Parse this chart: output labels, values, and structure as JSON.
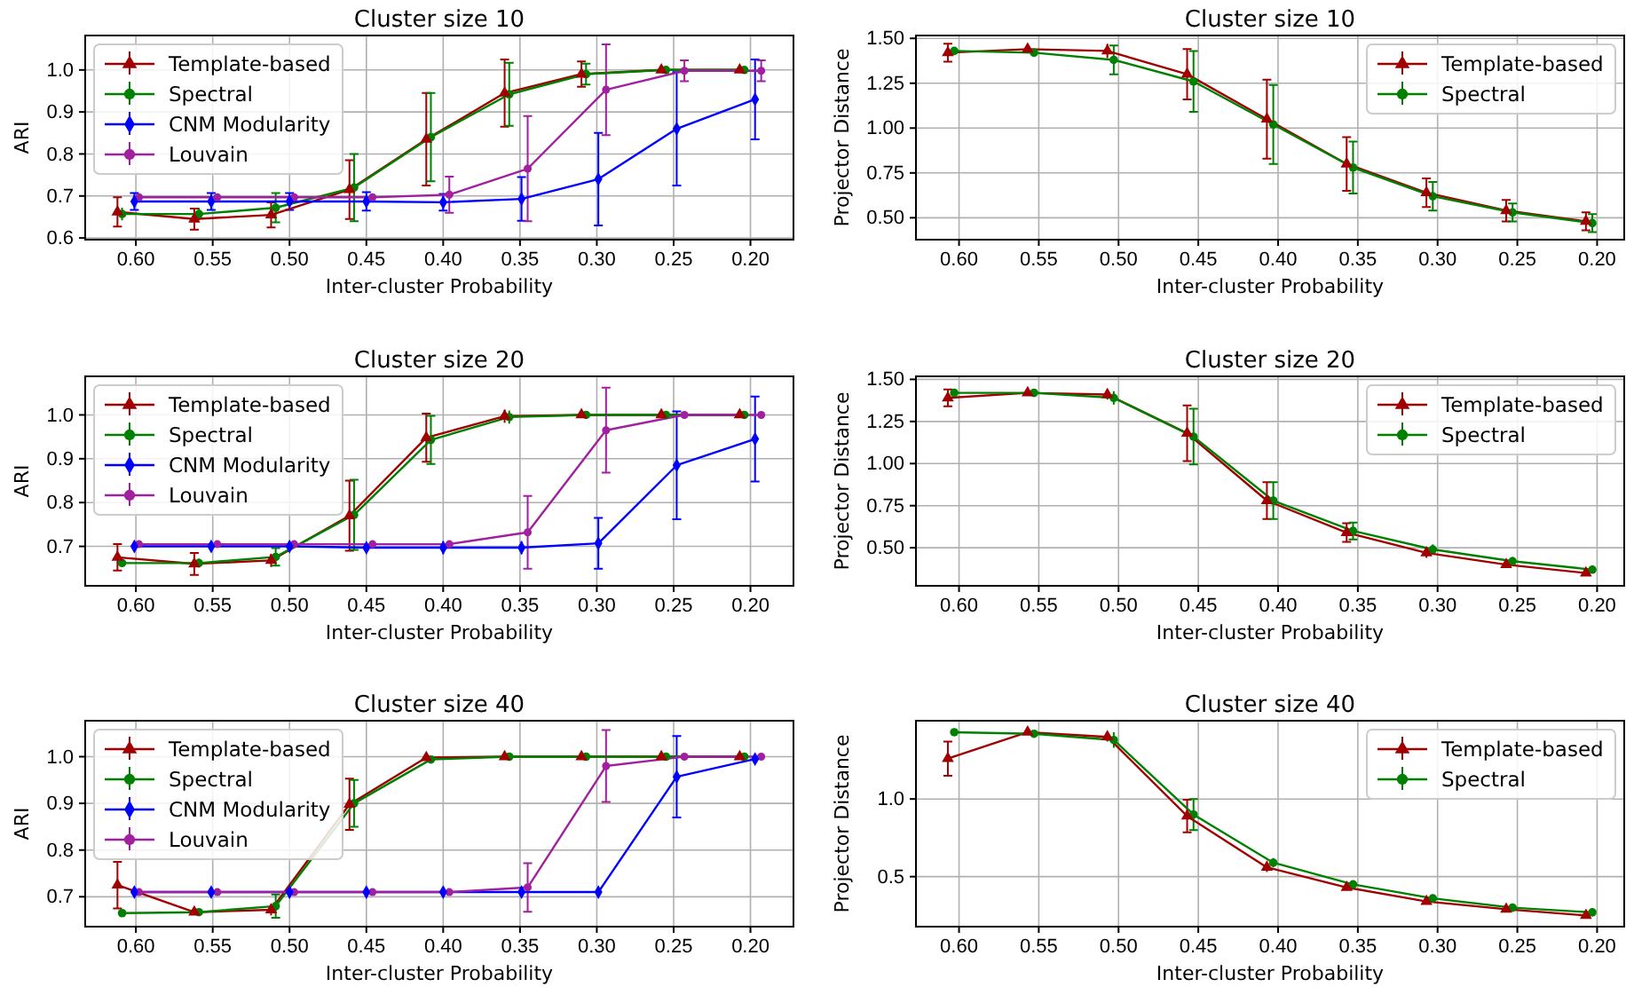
{
  "chart_data": [
    {
      "type": "line",
      "title": "Cluster size 10",
      "xlabel": "Inter-cluster Probability",
      "ylabel": "ARI",
      "xlim": [
        0.633,
        0.172
      ],
      "ylim": [
        0.596,
        1.082
      ],
      "xticks": [
        {
          "value": 0.6,
          "label": "0.60"
        },
        {
          "value": 0.55,
          "label": "0.55"
        },
        {
          "value": 0.5,
          "label": "0.50"
        },
        {
          "value": 0.45,
          "label": "0.45"
        },
        {
          "value": 0.4,
          "label": "0.40"
        },
        {
          "value": 0.35,
          "label": "0.35"
        },
        {
          "value": 0.3,
          "label": "0.30"
        },
        {
          "value": 0.25,
          "label": "0.25"
        },
        {
          "value": 0.2,
          "label": "0.20"
        }
      ],
      "yticks": [
        0.6,
        0.7,
        0.8,
        0.9,
        {
          "value": 1,
          "label": "1.0"
        }
      ],
      "grid": true,
      "legend": "top left",
      "series": [
        {
          "name": "Template-based",
          "color": "#a00000",
          "marker": "triangle",
          "x": [
            0.612,
            0.562,
            0.512,
            0.461,
            0.411,
            0.36,
            0.31,
            0.258,
            0.207
          ],
          "values": [
            0.662,
            0.645,
            0.655,
            0.715,
            0.835,
            0.945,
            0.99,
            1.0,
            1.0
          ],
          "errors": [
            0.035,
            0.025,
            0.03,
            0.07,
            0.11,
            0.08,
            0.03,
            0.005,
            0.005
          ]
        },
        {
          "name": "Spectral",
          "color": "#008000",
          "marker": "circle",
          "x": [
            0.609,
            0.559,
            0.509,
            0.458,
            0.408,
            0.357,
            0.307,
            0.255,
            0.204
          ],
          "values": [
            0.657,
            0.657,
            0.672,
            0.72,
            0.84,
            0.942,
            0.99,
            1.0,
            1.0
          ],
          "errors": [
            0.015,
            0.015,
            0.035,
            0.08,
            0.105,
            0.075,
            0.025,
            0.01,
            0.005
          ]
        },
        {
          "name": "CNM Modularity",
          "color": "#0000ff",
          "marker": "diamond",
          "x": [
            0.601,
            0.551,
            0.5,
            0.45,
            0.4,
            0.349,
            0.299,
            0.248,
            0.197
          ],
          "values": [
            0.687,
            0.687,
            0.687,
            0.687,
            0.685,
            0.693,
            0.74,
            0.86,
            0.93
          ],
          "errors": [
            0.02,
            0.02,
            0.02,
            0.022,
            0.02,
            0.052,
            0.11,
            0.135,
            0.095
          ]
        },
        {
          "name": "Louvain",
          "color": "#a020a0",
          "marker": "circle",
          "x": [
            0.598,
            0.547,
            0.497,
            0.446,
            0.396,
            0.345,
            0.294,
            0.243,
            0.193
          ],
          "values": [
            0.697,
            0.697,
            0.697,
            0.697,
            0.703,
            0.765,
            0.953,
            0.998,
            0.998
          ],
          "errors": [
            0.008,
            0.008,
            0.008,
            0.008,
            0.043,
            0.125,
            0.108,
            0.025,
            0.025
          ]
        }
      ]
    },
    {
      "type": "line",
      "title": "Cluster size 10",
      "xlabel": "Inter-cluster Probability",
      "ylabel": "Projector Distance",
      "xlim": [
        0.627,
        0.183
      ],
      "ylim": [
        0.378,
        1.516
      ],
      "xticks": [
        {
          "value": 0.6,
          "label": "0.60"
        },
        {
          "value": 0.55,
          "label": "0.55"
        },
        {
          "value": 0.5,
          "label": "0.50"
        },
        {
          "value": 0.45,
          "label": "0.45"
        },
        {
          "value": 0.4,
          "label": "0.40"
        },
        {
          "value": 0.35,
          "label": "0.35"
        },
        {
          "value": 0.3,
          "label": "0.30"
        },
        {
          "value": 0.25,
          "label": "0.25"
        },
        {
          "value": 0.2,
          "label": "0.20"
        }
      ],
      "yticks": [
        {
          "value": 0.5,
          "label": "0.50"
        },
        0.75,
        {
          "value": 1,
          "label": "1.00"
        },
        1.25,
        {
          "value": 1.5,
          "label": "1.50"
        }
      ],
      "grid": true,
      "legend": "top right",
      "series": [
        {
          "name": "Template-based",
          "color": "#a00000",
          "marker": "triangle",
          "x": [
            0.607,
            0.557,
            0.507,
            0.457,
            0.407,
            0.357,
            0.307,
            0.257,
            0.207
          ],
          "values": [
            1.42,
            1.44,
            1.43,
            1.3,
            1.05,
            0.8,
            0.64,
            0.54,
            0.48
          ],
          "errors": [
            0.05,
            0.015,
            0.04,
            0.14,
            0.22,
            0.15,
            0.08,
            0.06,
            0.05
          ]
        },
        {
          "name": "Spectral",
          "color": "#008000",
          "marker": "circle",
          "x": [
            0.603,
            0.553,
            0.503,
            0.453,
            0.403,
            0.353,
            0.303,
            0.253,
            0.203
          ],
          "values": [
            1.43,
            1.42,
            1.38,
            1.26,
            1.02,
            0.78,
            0.62,
            0.53,
            0.47
          ],
          "errors": [
            0.01,
            0.02,
            0.08,
            0.17,
            0.22,
            0.145,
            0.08,
            0.05,
            0.05
          ]
        }
      ]
    },
    {
      "type": "line",
      "title": "Cluster size 20",
      "xlabel": "Inter-cluster Probability",
      "ylabel": "ARI",
      "xlim": [
        0.633,
        0.172
      ],
      "ylim": [
        0.61,
        1.088
      ],
      "xticks": [
        {
          "value": 0.6,
          "label": "0.60"
        },
        {
          "value": 0.55,
          "label": "0.55"
        },
        {
          "value": 0.5,
          "label": "0.50"
        },
        {
          "value": 0.45,
          "label": "0.45"
        },
        {
          "value": 0.4,
          "label": "0.40"
        },
        {
          "value": 0.35,
          "label": "0.35"
        },
        {
          "value": 0.3,
          "label": "0.30"
        },
        {
          "value": 0.25,
          "label": "0.25"
        },
        {
          "value": 0.2,
          "label": "0.20"
        }
      ],
      "yticks": [
        0.7,
        0.8,
        0.9,
        {
          "value": 1,
          "label": "1.0"
        }
      ],
      "grid": true,
      "legend": "top left",
      "series": [
        {
          "name": "Template-based",
          "color": "#a00000",
          "marker": "triangle",
          "x": [
            0.612,
            0.562,
            0.512,
            0.461,
            0.411,
            0.36,
            0.31,
            0.258,
            0.207
          ],
          "values": [
            0.675,
            0.66,
            0.668,
            0.77,
            0.948,
            0.997,
            1.0,
            1.0,
            1.0
          ],
          "errors": [
            0.03,
            0.025,
            0.015,
            0.08,
            0.055,
            0.015,
            0.005,
            0.005,
            0.005
          ]
        },
        {
          "name": "Spectral",
          "color": "#008000",
          "marker": "circle",
          "x": [
            0.609,
            0.559,
            0.509,
            0.458,
            0.408,
            0.357,
            0.307,
            0.255,
            0.204
          ],
          "values": [
            0.662,
            0.662,
            0.676,
            0.772,
            0.943,
            0.995,
            1.0,
            1.0,
            1.0
          ],
          "errors": [
            0.005,
            0.01,
            0.02,
            0.08,
            0.055,
            0.015,
            0.003,
            0.003,
            0.003
          ]
        },
        {
          "name": "CNM Modularity",
          "color": "#0000ff",
          "marker": "diamond",
          "x": [
            0.601,
            0.551,
            0.5,
            0.45,
            0.4,
            0.349,
            0.299,
            0.248,
            0.197
          ],
          "values": [
            0.7,
            0.7,
            0.7,
            0.697,
            0.697,
            0.697,
            0.707,
            0.885,
            0.945
          ],
          "errors": [
            0.01,
            0.01,
            0.01,
            0.01,
            0.015,
            0.015,
            0.058,
            0.123,
            0.097
          ]
        },
        {
          "name": "Louvain",
          "color": "#a020a0",
          "marker": "circle",
          "x": [
            0.598,
            0.547,
            0.497,
            0.446,
            0.396,
            0.345,
            0.294,
            0.243,
            0.193
          ],
          "values": [
            0.705,
            0.705,
            0.705,
            0.705,
            0.705,
            0.732,
            0.965,
            1.0,
            1.0
          ],
          "errors": [
            0.005,
            0.005,
            0.005,
            0.005,
            0.005,
            0.083,
            0.097,
            0.005,
            0.005
          ]
        }
      ]
    },
    {
      "type": "line",
      "title": "Cluster size 20",
      "xlabel": "Inter-cluster Probability",
      "ylabel": "Projector Distance",
      "xlim": [
        0.627,
        0.183
      ],
      "ylim": [
        0.274,
        1.518
      ],
      "xticks": [
        {
          "value": 0.6,
          "label": "0.60"
        },
        {
          "value": 0.55,
          "label": "0.55"
        },
        {
          "value": 0.5,
          "label": "0.50"
        },
        {
          "value": 0.45,
          "label": "0.45"
        },
        {
          "value": 0.4,
          "label": "0.40"
        },
        {
          "value": 0.35,
          "label": "0.35"
        },
        {
          "value": 0.3,
          "label": "0.30"
        },
        {
          "value": 0.25,
          "label": "0.25"
        },
        {
          "value": 0.2,
          "label": "0.20"
        }
      ],
      "yticks": [
        {
          "value": 0.5,
          "label": "0.50"
        },
        0.75,
        {
          "value": 1,
          "label": "1.00"
        },
        1.25,
        {
          "value": 1.5,
          "label": "1.50"
        }
      ],
      "grid": true,
      "legend": "top right",
      "series": [
        {
          "name": "Template-based",
          "color": "#a00000",
          "marker": "triangle",
          "x": [
            0.607,
            0.557,
            0.507,
            0.457,
            0.407,
            0.357,
            0.307,
            0.257,
            0.207
          ],
          "values": [
            1.39,
            1.42,
            1.41,
            1.18,
            0.78,
            0.59,
            0.47,
            0.4,
            0.35
          ],
          "errors": [
            0.05,
            0.015,
            0.03,
            0.165,
            0.11,
            0.055,
            0.03,
            0.02,
            0.015
          ]
        },
        {
          "name": "Spectral",
          "color": "#008000",
          "marker": "circle",
          "x": [
            0.603,
            0.553,
            0.503,
            0.453,
            0.403,
            0.353,
            0.303,
            0.253,
            0.203
          ],
          "values": [
            1.42,
            1.42,
            1.39,
            1.16,
            0.78,
            0.6,
            0.49,
            0.42,
            0.37
          ],
          "errors": [
            0.01,
            0.01,
            0.04,
            0.165,
            0.11,
            0.05,
            0.03,
            0.025,
            0.015
          ]
        }
      ]
    },
    {
      "type": "line",
      "title": "Cluster size 40",
      "xlabel": "Inter-cluster Probability",
      "ylabel": "ARI",
      "xlim": [
        0.633,
        0.172
      ],
      "ylim": [
        0.636,
        1.077
      ],
      "xticks": [
        {
          "value": 0.6,
          "label": "0.60"
        },
        {
          "value": 0.55,
          "label": "0.55"
        },
        {
          "value": 0.5,
          "label": "0.50"
        },
        {
          "value": 0.45,
          "label": "0.45"
        },
        {
          "value": 0.4,
          "label": "0.40"
        },
        {
          "value": 0.35,
          "label": "0.35"
        },
        {
          "value": 0.3,
          "label": "0.30"
        },
        {
          "value": 0.25,
          "label": "0.25"
        },
        {
          "value": 0.2,
          "label": "0.20"
        }
      ],
      "yticks": [
        0.7,
        0.8,
        0.9,
        {
          "value": 1,
          "label": "1.0"
        }
      ],
      "grid": true,
      "legend": "top left",
      "series": [
        {
          "name": "Template-based",
          "color": "#a00000",
          "marker": "triangle",
          "x": [
            0.612,
            0.562,
            0.512,
            0.461,
            0.411,
            0.36,
            0.31,
            0.258,
            0.207
          ],
          "values": [
            0.725,
            0.667,
            0.672,
            0.898,
            0.998,
            1.0,
            1.0,
            1.0,
            1.0
          ],
          "errors": [
            0.05,
            0.005,
            0.012,
            0.055,
            0.005,
            0.003,
            0.003,
            0.003,
            0.003
          ]
        },
        {
          "name": "Spectral",
          "color": "#008000",
          "marker": "circle",
          "x": [
            0.609,
            0.559,
            0.509,
            0.458,
            0.408,
            0.357,
            0.307,
            0.255,
            0.204
          ],
          "values": [
            0.665,
            0.667,
            0.68,
            0.9,
            0.994,
            1.0,
            1.0,
            1.0,
            1.0
          ],
          "errors": [
            0.002,
            0.005,
            0.025,
            0.05,
            0.005,
            0.002,
            0.002,
            0.002,
            0.002
          ]
        },
        {
          "name": "CNM Modularity",
          "color": "#0000ff",
          "marker": "diamond",
          "x": [
            0.601,
            0.551,
            0.5,
            0.45,
            0.4,
            0.349,
            0.299,
            0.248,
            0.197
          ],
          "values": [
            0.71,
            0.71,
            0.71,
            0.71,
            0.71,
            0.71,
            0.71,
            0.957,
            0.995
          ],
          "errors": [
            0.003,
            0.003,
            0.003,
            0.003,
            0.003,
            0.003,
            0.003,
            0.087,
            0.01
          ]
        },
        {
          "name": "Louvain",
          "color": "#a020a0",
          "marker": "circle",
          "x": [
            0.598,
            0.547,
            0.497,
            0.446,
            0.396,
            0.345,
            0.294,
            0.243,
            0.193
          ],
          "values": [
            0.71,
            0.71,
            0.71,
            0.71,
            0.71,
            0.72,
            0.98,
            1.0,
            1.0
          ],
          "errors": [
            0.003,
            0.003,
            0.003,
            0.003,
            0.003,
            0.052,
            0.077,
            0.003,
            0.003
          ]
        }
      ]
    },
    {
      "type": "line",
      "title": "Cluster size 40",
      "xlabel": "Inter-cluster Probability",
      "ylabel": "Projector Distance",
      "xlim": [
        0.627,
        0.183
      ],
      "ylim": [
        0.178,
        1.504
      ],
      "xticks": [
        {
          "value": 0.6,
          "label": "0.60"
        },
        {
          "value": 0.55,
          "label": "0.55"
        },
        {
          "value": 0.5,
          "label": "0.50"
        },
        {
          "value": 0.45,
          "label": "0.45"
        },
        {
          "value": 0.4,
          "label": "0.40"
        },
        {
          "value": 0.35,
          "label": "0.35"
        },
        {
          "value": 0.3,
          "label": "0.30"
        },
        {
          "value": 0.25,
          "label": "0.25"
        },
        {
          "value": 0.2,
          "label": "0.20"
        }
      ],
      "yticks": [
        0.5,
        {
          "value": 1,
          "label": "1.0"
        }
      ],
      "grid": true,
      "legend": "top right",
      "series": [
        {
          "name": "Template-based",
          "color": "#a00000",
          "marker": "triangle",
          "x": [
            0.607,
            0.557,
            0.507,
            0.457,
            0.407,
            0.357,
            0.307,
            0.257,
            0.207
          ],
          "values": [
            1.26,
            1.43,
            1.4,
            0.89,
            0.56,
            0.43,
            0.34,
            0.29,
            0.25
          ],
          "errors": [
            0.11,
            0.01,
            0.03,
            0.105,
            0.03,
            0.015,
            0.015,
            0.01,
            0.01
          ]
        },
        {
          "name": "Spectral",
          "color": "#008000",
          "marker": "circle",
          "x": [
            0.603,
            0.553,
            0.503,
            0.453,
            0.403,
            0.353,
            0.303,
            0.253,
            0.203
          ],
          "values": [
            1.43,
            1.42,
            1.38,
            0.9,
            0.59,
            0.45,
            0.36,
            0.3,
            0.27
          ],
          "errors": [
            0.005,
            0.01,
            0.05,
            0.1,
            0.03,
            0.01,
            0.01,
            0.01,
            0.01
          ]
        }
      ]
    }
  ]
}
